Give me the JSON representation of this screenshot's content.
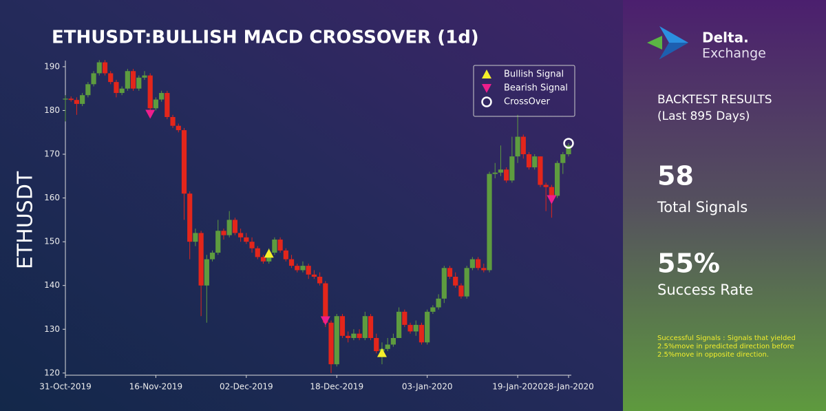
{
  "chart_data": {
    "type": "candlestick",
    "title": "ETHUSDT:BULLISH MACD CROSSOVER (1d)",
    "ylabel": "ETHUSDT",
    "x": [
      "2019-10-31",
      "2019-11-01",
      "2019-11-02",
      "2019-11-03",
      "2019-11-04",
      "2019-11-05",
      "2019-11-06",
      "2019-11-07",
      "2019-11-08",
      "2019-11-09",
      "2019-11-10",
      "2019-11-11",
      "2019-11-12",
      "2019-11-13",
      "2019-11-14",
      "2019-11-15",
      "2019-11-16",
      "2019-11-17",
      "2019-11-18",
      "2019-11-19",
      "2019-11-20",
      "2019-11-21",
      "2019-11-22",
      "2019-11-23",
      "2019-11-24",
      "2019-11-25",
      "2019-11-26",
      "2019-11-27",
      "2019-11-28",
      "2019-11-29",
      "2019-11-30",
      "2019-12-01",
      "2019-12-02",
      "2019-12-03",
      "2019-12-04",
      "2019-12-05",
      "2019-12-06",
      "2019-12-07",
      "2019-12-08",
      "2019-12-09",
      "2019-12-10",
      "2019-12-11",
      "2019-12-12",
      "2019-12-13",
      "2019-12-14",
      "2019-12-15",
      "2019-12-16",
      "2019-12-17",
      "2019-12-18",
      "2019-12-19",
      "2019-12-20",
      "2019-12-21",
      "2019-12-22",
      "2019-12-23",
      "2019-12-24",
      "2019-12-25",
      "2019-12-26",
      "2019-12-27",
      "2019-12-28",
      "2019-12-29",
      "2019-12-30",
      "2019-12-31",
      "2020-01-01",
      "2020-01-02",
      "2020-01-03",
      "2020-01-04",
      "2020-01-05",
      "2020-01-06",
      "2020-01-07",
      "2020-01-08",
      "2020-01-09",
      "2020-01-10",
      "2020-01-11",
      "2020-01-12",
      "2020-01-13",
      "2020-01-14",
      "2020-01-15",
      "2020-01-16",
      "2020-01-17",
      "2020-01-18",
      "2020-01-19",
      "2020-01-20",
      "2020-01-21",
      "2020-01-22",
      "2020-01-23",
      "2020-01-24",
      "2020-01-25",
      "2020-01-26",
      "2020-01-27",
      "2020-01-28"
    ],
    "open": [
      182.5,
      182.7,
      182.4,
      181.5,
      183.5,
      186,
      188.5,
      191,
      188.5,
      186.5,
      184,
      185,
      189,
      185,
      187.5,
      188,
      180.5,
      182.5,
      184,
      178.5,
      176.5,
      175.5,
      161,
      150,
      152,
      140,
      146,
      147.5,
      152.5,
      151.5,
      155,
      152,
      151,
      150,
      148.5,
      146.5,
      145.5,
      147.5,
      150.5,
      148,
      146,
      144.5,
      143.5,
      144.5,
      142.5,
      142,
      140.5,
      131.5,
      122,
      133,
      128.5,
      128,
      129,
      128,
      133,
      128,
      125,
      125.5,
      126.5,
      128,
      134,
      131,
      129.5,
      131,
      127,
      134,
      135,
      137,
      144,
      142,
      140,
      137.5,
      144,
      146,
      144,
      143.5,
      165.5,
      165.8,
      166.5,
      164,
      169.5,
      174,
      170,
      167,
      169.5,
      163,
      162.5,
      160.5,
      168,
      170
    ],
    "high": [
      183.5,
      183.2,
      183,
      184,
      186.5,
      189,
      191.5,
      191.5,
      189,
      187,
      185.5,
      189.5,
      189.5,
      188,
      189,
      188.5,
      183,
      184.5,
      184.5,
      179,
      177,
      176,
      161.5,
      153,
      152.5,
      147,
      148,
      155,
      153,
      157,
      155.5,
      153,
      152,
      151,
      149,
      147,
      148.5,
      151,
      151,
      148.5,
      147,
      145,
      145.5,
      145,
      143.5,
      143,
      141,
      132,
      133.5,
      133.5,
      129.5,
      130,
      130,
      134,
      133.5,
      129,
      127,
      128,
      129,
      135,
      134.5,
      131.5,
      132,
      131.5,
      134.5,
      135.5,
      138,
      144.5,
      144.5,
      143,
      140.5,
      144.5,
      146.5,
      146.5,
      145,
      166,
      168,
      172,
      167,
      174,
      179,
      174.5,
      170.5,
      170,
      169.5,
      163.5,
      163,
      168.5,
      170.5,
      172.5
    ],
    "low": [
      177.5,
      182,
      179,
      181,
      183,
      185.5,
      188,
      188,
      186,
      183,
      183.5,
      184.5,
      184.5,
      184.5,
      187,
      180,
      180,
      182,
      178,
      176,
      175,
      155,
      146,
      149,
      133,
      131.5,
      145.5,
      147,
      150.5,
      151,
      151.5,
      150,
      149.5,
      147.5,
      146,
      145,
      145,
      147,
      147.5,
      145.5,
      144,
      143,
      143,
      141.5,
      141.5,
      140,
      130.5,
      120,
      121.5,
      128,
      127,
      127.5,
      127.5,
      127.5,
      127.5,
      124.5,
      122,
      125,
      126,
      128,
      130.5,
      129,
      128.5,
      126.5,
      126.5,
      133.5,
      134.5,
      136,
      141.5,
      139.5,
      137,
      137,
      143.5,
      143.5,
      143,
      143,
      164.5,
      165,
      163.5,
      163.5,
      168,
      169,
      166.5,
      166.5,
      162.5,
      157,
      155.5,
      160,
      165.5,
      169.5
    ],
    "close": [
      182.7,
      182.4,
      181.5,
      183.5,
      186,
      188.5,
      191,
      188.5,
      186.5,
      184,
      185,
      189,
      185,
      187.5,
      188,
      180.5,
      182.5,
      184,
      178.5,
      176.5,
      175.5,
      161,
      150,
      152,
      140,
      146,
      147.5,
      152.5,
      151.5,
      155,
      152,
      151,
      150,
      148.5,
      146.5,
      145.5,
      147.5,
      150.5,
      148,
      146,
      144.5,
      143.5,
      144.5,
      142.5,
      142,
      140.5,
      131.5,
      122,
      133,
      128.5,
      128,
      129,
      128,
      133,
      128,
      125,
      125.5,
      126.5,
      128,
      134,
      131,
      129.5,
      131,
      127,
      134,
      135,
      137,
      144,
      142,
      140,
      137.5,
      144,
      146,
      144,
      143.5,
      165.5,
      165.8,
      166.5,
      164,
      169.5,
      174,
      170,
      167,
      169.5,
      163,
      162.5,
      160.5,
      168,
      170,
      172
    ],
    "up_color": "#5e9c3f",
    "down_color": "#e3261b",
    "series": [
      {
        "name": "Bullish Signal",
        "color": "#f5ef2a",
        "marker": "^",
        "x": [
          "2019-12-06",
          "2019-12-26"
        ],
        "values": [
          147.3,
          124.6
        ]
      },
      {
        "name": "Bearish Signal",
        "color": "#ee1e8c",
        "marker": "v",
        "x": [
          "2019-11-15",
          "2019-12-16",
          "2020-01-25"
        ],
        "values": [
          179.2,
          132,
          159.7
        ]
      },
      {
        "name": "CrossOver",
        "color": "#ffffff",
        "marker": "o",
        "x": [
          "2020-01-28"
        ],
        "values": [
          172.5
        ]
      }
    ],
    "legend": "upper right",
    "xlim": [
      "2019-10-31",
      "2020-01-28"
    ],
    "xticks": [
      {
        "value": "2019-10-31",
        "label": "31-Oct-2019"
      },
      {
        "value": "2019-11-16",
        "label": "16-Nov-2019"
      },
      {
        "value": "2019-12-02",
        "label": "02-Dec-2019"
      },
      {
        "value": "2019-12-18",
        "label": "18-Dec-2019"
      },
      {
        "value": "2020-01-03",
        "label": "03-Jan-2020"
      },
      {
        "value": "2020-01-19",
        "label": "19-Jan-2020"
      },
      {
        "value": "2020-01-28",
        "label": "28-Jan-2020"
      }
    ],
    "ylim": [
      119.5,
      191.4
    ],
    "yticks": [
      120,
      130,
      140,
      150,
      160,
      170,
      180,
      190
    ],
    "grid": false
  },
  "sidebar": {
    "logo": {
      "name": "Delta.",
      "sub": "Exchange"
    },
    "heading": "BACKTEST RESULTS",
    "period": "(Last 895 Days)",
    "stats": [
      {
        "value": "58",
        "label": "Total Signals"
      },
      {
        "value": "55%",
        "label": "Success Rate"
      }
    ],
    "footnote": [
      "Successful Signals : Signals that yielded",
      "2.5%move in predicted direction before",
      "2.5%move in opposite direction."
    ]
  }
}
